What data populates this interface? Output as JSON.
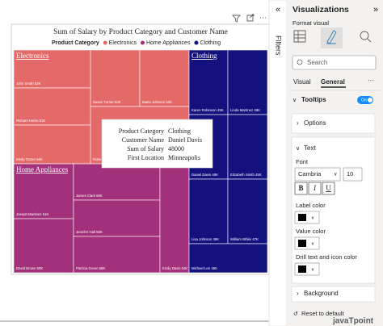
{
  "visual": {
    "title": "Sum of Salary by Product Category and Customer Name",
    "legend": {
      "label": "Product Category"
    },
    "groups": [
      {
        "name": "Electronics",
        "color": "#e46a6a",
        "tiles": [
          "John Smith 52K",
          "Richard Harris 51K",
          "Emily Turner 50K",
          "Susan Turner 54K",
          "Maria Johnson 53K",
          "Robe"
        ]
      },
      {
        "name": "Home Appliances",
        "color": "#a2307b",
        "tiles": [
          "Joseph Martinez 61K",
          "David Brown 60K",
          "James Clark 60K",
          "Jennifer Hall 55K",
          "Patricia Green 58K",
          "Emily Davis 53K"
        ]
      },
      {
        "name": "Clothing",
        "color": "#13117e",
        "tiles": [
          "Karen Robinson 49K",
          "Linda Martinez 48K",
          "Daniel Davis 48K",
          "Elizabeth Smith 48K",
          "Lisa Johnson 48K",
          "William White 47K",
          "Michael Lee 45K"
        ]
      }
    ],
    "tooltip": [
      [
        "Product Category",
        "Clothing"
      ],
      [
        "Customer Name",
        "Daniel Davis"
      ],
      [
        "Sum of Salary",
        "48000"
      ],
      [
        "First Location",
        "Minneapolis"
      ]
    ]
  },
  "filters": "Filters",
  "pane": {
    "title": "Visualizations",
    "subtitle": "Format visual",
    "search": "Search",
    "tabs": [
      "Visual",
      "General"
    ],
    "tooltips": "Tooltips",
    "toggle": "On",
    "options": "Options",
    "text": "Text",
    "font_label": "Font",
    "font": "Cambria",
    "size": "10",
    "styles": [
      "B",
      "I",
      "U"
    ],
    "label_color": "Label color",
    "value_color": "Value color",
    "drill_color": "Drill text and icon color",
    "background": "Background",
    "reset": "Reset to default"
  },
  "watermark": "javaTpoint"
}
